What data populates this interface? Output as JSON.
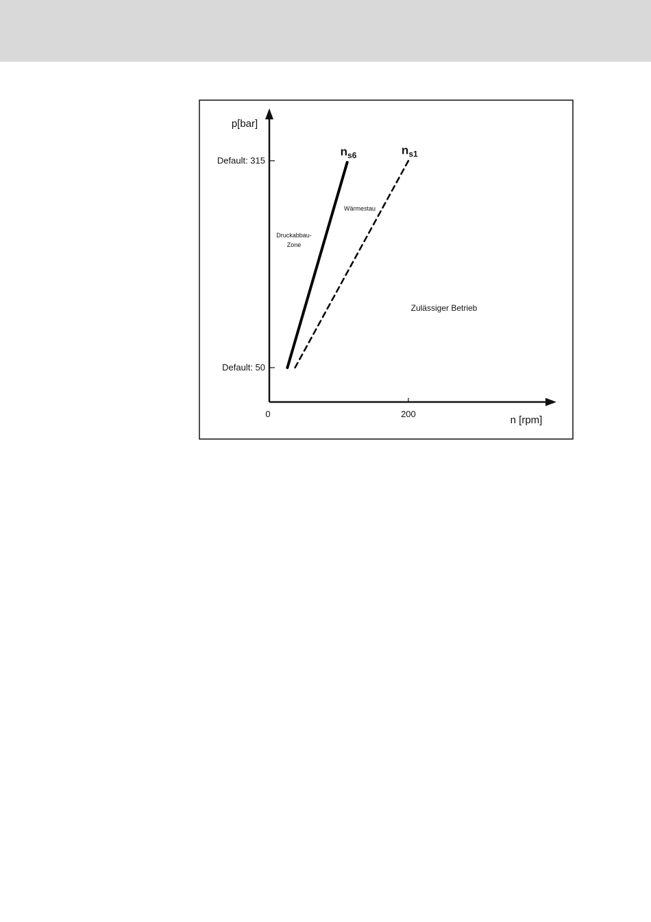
{
  "chart_data": {
    "type": "line",
    "xlabel": "n [rpm]",
    "ylabel": "p[bar]",
    "xlim": [
      0,
      410
    ],
    "ylim": [
      6,
      376
    ],
    "xticks": [
      0,
      200
    ],
    "yticks": [
      {
        "value": 50,
        "label": "Default: 50"
      },
      {
        "value": 315,
        "label": "Default: 315"
      }
    ],
    "series": [
      {
        "name": "n",
        "name_sub": "s6",
        "color": "#000000",
        "style": "solid",
        "x": [
          26,
          112
        ],
        "values": [
          50,
          313
        ]
      },
      {
        "name": "n",
        "name_sub": "s1",
        "color": "#000000",
        "style": "dashed",
        "x": [
          37,
          200
        ],
        "values": [
          50,
          315
        ]
      }
    ],
    "annotations": [
      "Wärmestau",
      "Druckabbau-",
      "Zone",
      "Zulässiger Betrieb"
    ]
  }
}
